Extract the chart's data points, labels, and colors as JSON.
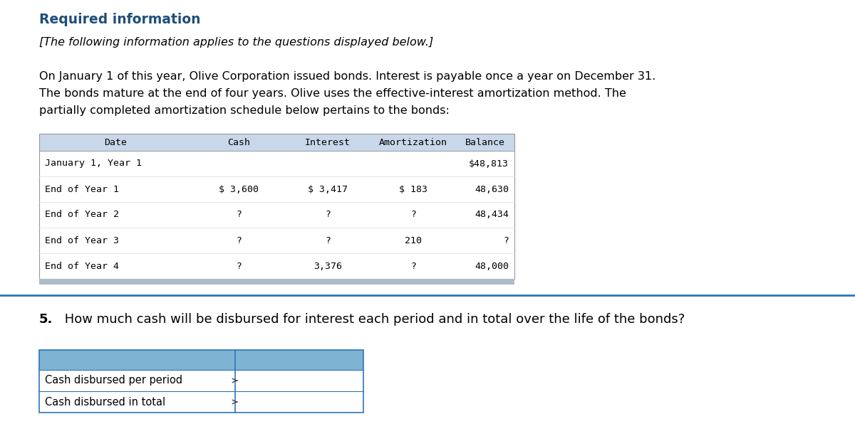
{
  "title_required": "Required information",
  "subtitle": "[The following information applies to the questions displayed below.]",
  "body_line1": "On January 1 of this year, Olive Corporation issued bonds. Interest is payable once a year on December 31.",
  "body_line2": "The bonds mature at the end of four years. Olive uses the effective-interest amortization method. The",
  "body_line3": "partially completed amortization schedule below pertains to the bonds:",
  "table_header": [
    "Date",
    "Cash",
    "Interest",
    "Amortization",
    "Balance"
  ],
  "table_rows": [
    [
      "January 1, Year 1",
      "",
      "",
      "",
      "$48,813"
    ],
    [
      "End of Year 1",
      "$ 3,600",
      "$ 3,417",
      "$ 183",
      "48,630"
    ],
    [
      "End of Year 2",
      "?",
      "?",
      "?",
      "48,434"
    ],
    [
      "End of Year 3",
      "?",
      "?",
      "210",
      "?"
    ],
    [
      "End of Year 4",
      "?",
      "3,376",
      "?",
      "48,000"
    ]
  ],
  "question_number": "5.",
  "question_text": " How much cash will be disbursed for interest each period and in total over the life of the bonds?",
  "answer_labels": [
    "Cash disbursed per period",
    "Cash disbursed in total"
  ],
  "table_header_bg": "#c8d8ea",
  "table_bottom_bar_bg": "#b8c8d8",
  "answer_header_bg": "#7fb3d3",
  "answer_box_bg": "#ffffff",
  "title_color": "#1f4e79",
  "divider_color": "#2e75b6",
  "border_color": "#aaaaaa",
  "answer_border_color": "#2e75b6",
  "text_color": "#000000",
  "mono_font": "DejaVu Sans Mono",
  "background_color": "#ffffff"
}
